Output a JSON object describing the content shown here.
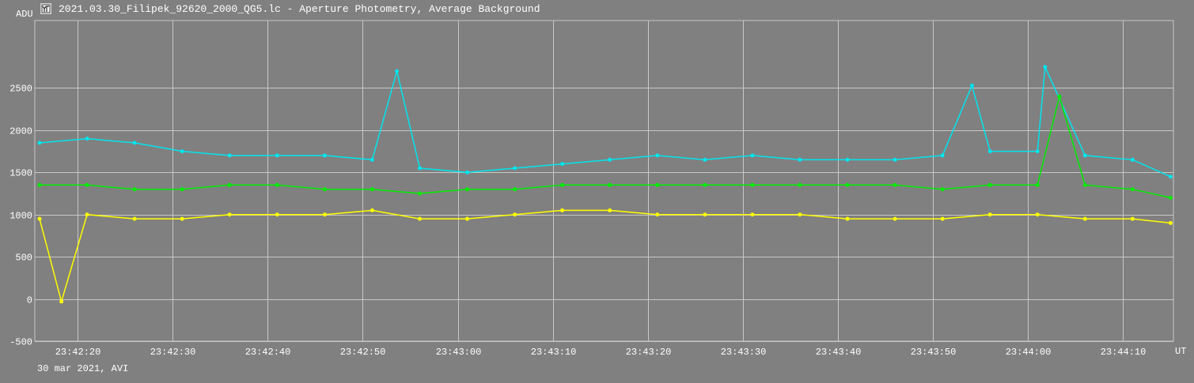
{
  "window": {
    "title": "2021.03.30_Filipek_92620_2000_QG5.lc - Aperture Photometry, Average Background",
    "footer": "30 mar 2021, AVI"
  },
  "colors": {
    "background": "#808080",
    "grid": "#c8c8c8",
    "text": "#ffffff"
  },
  "chart_data": {
    "type": "line",
    "title": "",
    "xlabel": "UT",
    "ylabel": "ADU",
    "ylim": [
      -500,
      3300
    ],
    "xlim": [
      "23:42:15.5",
      "23:44:15.3"
    ],
    "grid": true,
    "legend": "none",
    "y_ticks": [
      -500,
      0,
      500,
      1000,
      1500,
      2000,
      2500
    ],
    "x_ticks": [
      "23:42:20",
      "23:42:30",
      "23:42:40",
      "23:42:50",
      "23:43:00",
      "23:43:10",
      "23:43:20",
      "23:43:30",
      "23:43:40",
      "23:43:50",
      "23:44:00",
      "23:44:10"
    ],
    "series": [
      {
        "color": "#00e5ee",
        "x": [
          "23:42:16",
          "23:42:21",
          "23:42:26",
          "23:42:31",
          "23:42:36",
          "23:42:41",
          "23:42:46",
          "23:42:51",
          "23:42:53.6",
          "23:42:56",
          "23:43:01",
          "23:43:06",
          "23:43:11",
          "23:43:16",
          "23:43:21",
          "23:43:26",
          "23:43:31",
          "23:43:36",
          "23:43:41",
          "23:43:46",
          "23:43:51",
          "23:43:54.1",
          "23:43:56",
          "23:44:01",
          "23:44:01.8",
          "23:44:06",
          "23:44:11",
          "23:44:15"
        ],
        "values": [
          1850,
          1900,
          1850,
          1750,
          1700,
          1700,
          1700,
          1650,
          2700,
          1550,
          1500,
          1550,
          1600,
          1650,
          1700,
          1650,
          1700,
          1650,
          1650,
          1650,
          1700,
          2530,
          1750,
          1750,
          2750,
          1700,
          1650,
          1450
        ]
      },
      {
        "color": "#00ee00",
        "x": [
          "23:42:16",
          "23:42:21",
          "23:42:26",
          "23:42:31",
          "23:42:36",
          "23:42:41",
          "23:42:46",
          "23:42:51",
          "23:42:56",
          "23:43:01",
          "23:43:06",
          "23:43:11",
          "23:43:16",
          "23:43:21",
          "23:43:26",
          "23:43:31",
          "23:43:36",
          "23:43:41",
          "23:43:46",
          "23:43:51",
          "23:43:56",
          "23:44:01",
          "23:44:03.3",
          "23:44:06",
          "23:44:11",
          "23:44:15"
        ],
        "values": [
          1350,
          1350,
          1300,
          1300,
          1350,
          1350,
          1300,
          1300,
          1250,
          1300,
          1300,
          1350,
          1350,
          1350,
          1350,
          1350,
          1350,
          1350,
          1350,
          1300,
          1350,
          1350,
          2400,
          1350,
          1300,
          1200
        ]
      },
      {
        "color": "#ffff00",
        "x": [
          "23:42:16",
          "23:42:18.3",
          "23:42:21",
          "23:42:26",
          "23:42:31",
          "23:42:36",
          "23:42:41",
          "23:42:46",
          "23:42:51",
          "23:42:56",
          "23:43:01",
          "23:43:06",
          "23:43:11",
          "23:43:16",
          "23:43:21",
          "23:43:26",
          "23:43:31",
          "23:43:36",
          "23:43:41",
          "23:43:46",
          "23:43:51",
          "23:43:56",
          "23:44:01",
          "23:44:06",
          "23:44:11",
          "23:44:15"
        ],
        "values": [
          950,
          -30,
          1000,
          950,
          950,
          1000,
          1000,
          1000,
          1050,
          950,
          950,
          1000,
          1050,
          1050,
          1000,
          1000,
          1000,
          1000,
          950,
          950,
          950,
          1000,
          1000,
          950,
          950,
          900
        ]
      }
    ]
  }
}
